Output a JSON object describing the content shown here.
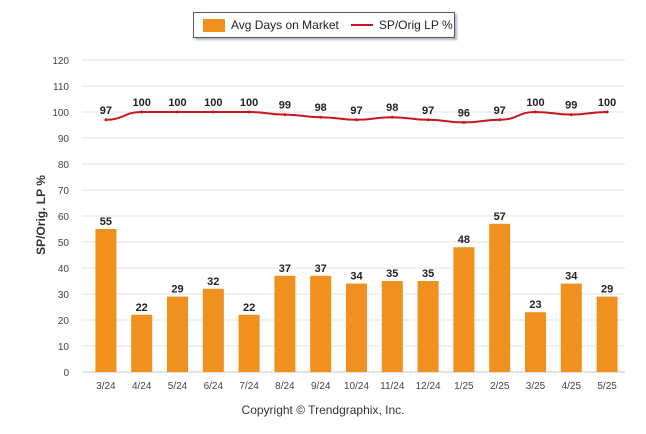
{
  "legend": {
    "bar_label": "Avg Days on Market",
    "line_label": "SP/Orig LP %"
  },
  "copyright": "Copyright © Trendgraphix, Inc.",
  "colors": {
    "bar": "#f0901e",
    "line": "#c8161d",
    "grid": "#e3e3e3"
  },
  "chart_data": {
    "type": "bar",
    "ylabel": "SP/Orig. LP %",
    "xlabel": "",
    "ylim": [
      0,
      120
    ],
    "yticks": [
      0,
      10,
      20,
      30,
      40,
      50,
      60,
      70,
      80,
      90,
      100,
      110,
      120
    ],
    "grid": true,
    "legend_position": "top-center",
    "categories": [
      "3/24",
      "4/24",
      "5/24",
      "6/24",
      "7/24",
      "8/24",
      "9/24",
      "10/24",
      "11/24",
      "12/24",
      "1/25",
      "2/25",
      "3/25",
      "4/25",
      "5/25"
    ],
    "series": [
      {
        "name": "Avg Days on Market",
        "type": "bar",
        "values": [
          55,
          22,
          29,
          32,
          22,
          37,
          37,
          34,
          35,
          35,
          48,
          57,
          23,
          34,
          29
        ]
      },
      {
        "name": "SP/Orig LP %",
        "type": "line",
        "values": [
          97,
          100,
          100,
          100,
          100,
          99,
          98,
          97,
          98,
          97,
          96,
          97,
          100,
          99,
          100
        ]
      }
    ]
  }
}
